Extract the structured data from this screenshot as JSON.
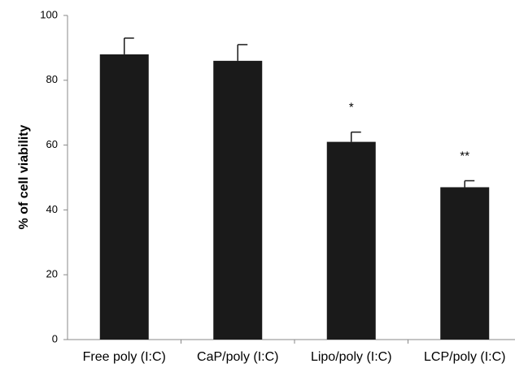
{
  "chart_data": {
    "type": "bar",
    "y_label": "% of cell viability",
    "categories": [
      "Free poly (I:C)",
      "CaP/poly (I:C)",
      "Lipo/poly (I:C)",
      "LCP/poly (I:C)"
    ],
    "values": [
      88,
      86,
      61,
      47
    ],
    "errors": [
      5,
      5,
      3,
      2
    ],
    "significance": [
      null,
      null,
      "*",
      "**"
    ],
    "color": "#1a1a1a",
    "ylim": [
      0,
      100
    ],
    "yticks": [
      0,
      20,
      40,
      60,
      80,
      100
    ],
    "grid": false
  }
}
